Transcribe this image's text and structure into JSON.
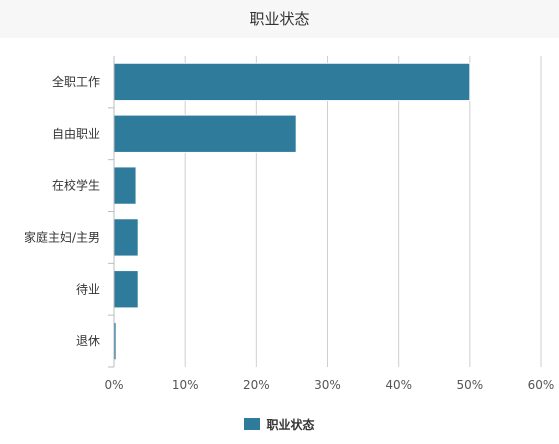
{
  "chart_data": {
    "type": "bar",
    "orientation": "horizontal",
    "title": "职业状态",
    "categories": [
      "全职工作",
      "自由职业",
      "在校学生",
      "家庭主妇/主男",
      "待业",
      "退休"
    ],
    "series": [
      {
        "name": "职业状态",
        "values": [
          50.0,
          25.6,
          3.1,
          3.4,
          3.4,
          0.3
        ],
        "color": "#2e7b9b"
      }
    ],
    "xlim": [
      0,
      60
    ],
    "xticks": [
      "0%",
      "10%",
      "20%",
      "30%",
      "40%",
      "50%",
      "60%"
    ],
    "grid": "vertical",
    "legend_position": "bottom-center"
  }
}
